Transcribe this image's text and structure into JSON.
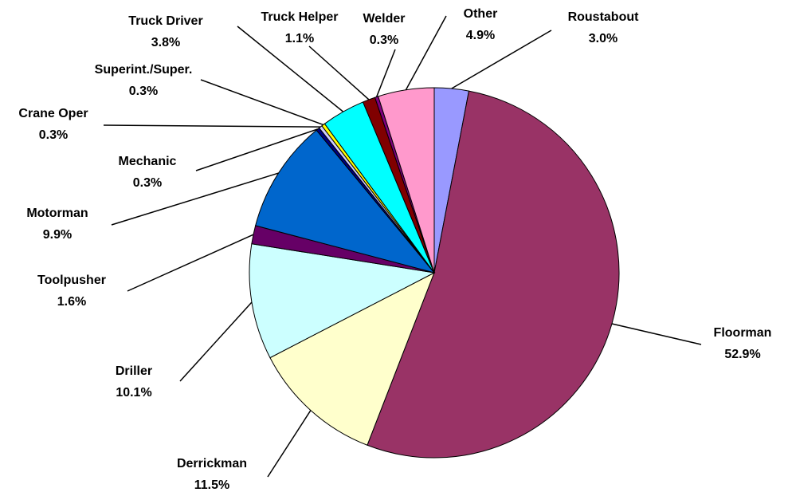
{
  "chart_data": {
    "type": "pie",
    "categories": [
      "Roustabout",
      "Floorman",
      "Derrickman",
      "Driller",
      "Toolpusher",
      "Motorman",
      "Mechanic",
      "Crane Oper",
      "Superint./Super.",
      "Truck Driver",
      "Truck Helper",
      "Welder",
      "Other"
    ],
    "values": [
      3.0,
      52.9,
      11.5,
      10.1,
      1.6,
      9.9,
      0.3,
      0.3,
      0.3,
      3.8,
      1.1,
      0.3,
      4.9
    ],
    "value_labels": [
      "3.0%",
      "52.9%",
      "11.5%",
      "10.1%",
      "1.6%",
      "9.9%",
      "0.3%",
      "0.3%",
      "0.3%",
      "3.8%",
      "1.1%",
      "0.3%",
      "4.9%"
    ],
    "colors": [
      "#9999ff",
      "#993366",
      "#ffffcc",
      "#ccffff",
      "#660066",
      "#0066cc",
      "#000080",
      "#ccccff",
      "#ffff00",
      "#00ffff",
      "#800000",
      "#800080",
      "#ff99cc"
    ]
  }
}
